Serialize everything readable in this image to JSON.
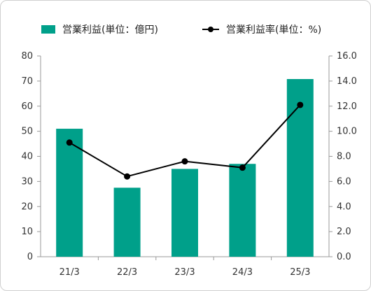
{
  "legend": {
    "bar_label": "営業利益(単位：億円)",
    "line_label": "営業利益率(単位：%)"
  },
  "colors": {
    "bar": "#00a08a",
    "line": "#000000",
    "axis": "#999999"
  },
  "chart_data": {
    "type": "bar",
    "categories": [
      "21/3",
      "22/3",
      "23/3",
      "24/3",
      "25/3"
    ],
    "series": [
      {
        "name": "営業利益(単位：億円)",
        "type": "bar",
        "axis": "left",
        "values": [
          51,
          27.5,
          35,
          37,
          70.8
        ]
      },
      {
        "name": "営業利益率(単位：%)",
        "type": "line",
        "axis": "right",
        "values": [
          9.1,
          6.4,
          7.6,
          7.1,
          12.1
        ]
      }
    ],
    "y_left": {
      "ylim": [
        0,
        80
      ],
      "ticks": [
        "0",
        "10",
        "20",
        "30",
        "40",
        "50",
        "60",
        "70",
        "80"
      ]
    },
    "y_right": {
      "ylim": [
        0,
        16
      ],
      "ticks": [
        "0.0",
        "2.0",
        "4.0",
        "6.0",
        "8.0",
        "10.0",
        "12.0",
        "14.0",
        "16.0"
      ]
    },
    "grid": false,
    "legend_position": "top"
  }
}
